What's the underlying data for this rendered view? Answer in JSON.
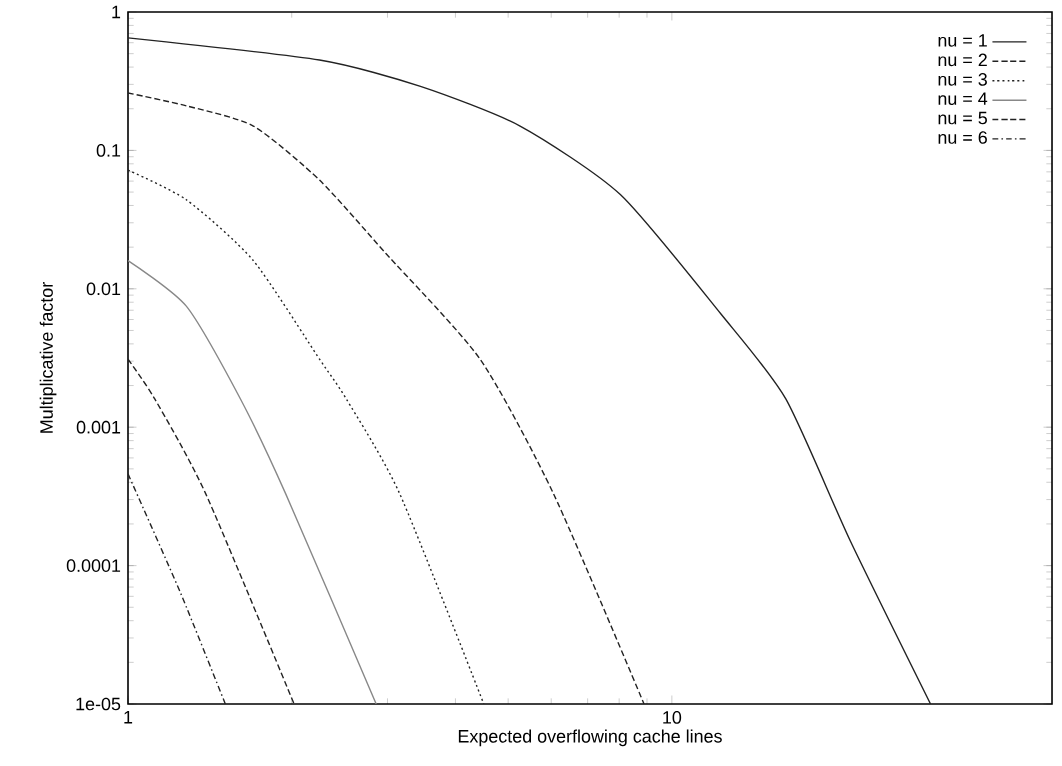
{
  "chart_data": {
    "type": "line",
    "xlabel": "Expected overflowing cache lines",
    "ylabel": "Multiplicative factor",
    "log": "xy",
    "xlim": [
      1,
      50
    ],
    "ylim": [
      1e-05,
      1
    ],
    "xticks": [
      1,
      10
    ],
    "yticks": [
      {
        "value": 1e-05,
        "label": "1e-05"
      },
      {
        "value": 0.0001,
        "label": "0.0001"
      },
      {
        "value": 0.001,
        "label": "0.001"
      },
      {
        "value": 0.01,
        "label": "0.01"
      },
      {
        "value": 0.1,
        "label": "0.1"
      },
      {
        "value": 1,
        "label": "1"
      }
    ],
    "grid": false,
    "legend": "top right",
    "marker": "none",
    "series": [
      {
        "name": "nu = 1",
        "color": "#222222",
        "line_style": "solid",
        "x": [
          1,
          2.25,
          3.45,
          5.26,
          8.04,
          12.3,
          16.2,
          21.3,
          29.9
        ],
        "values": [
          0.65,
          0.45,
          0.29,
          0.15,
          0.048,
          0.0066,
          0.0016,
          0.00015,
          1e-05
        ]
      },
      {
        "name": "nu = 2",
        "color": "#222222",
        "line_style": "dashed",
        "x": [
          1,
          1.28,
          1.7,
          2.25,
          2.98,
          4.44,
          6.06,
          8.89
        ],
        "values": [
          0.26,
          0.21,
          0.15,
          0.061,
          0.018,
          0.0031,
          0.00033,
          1e-05
        ]
      },
      {
        "name": "nu = 3",
        "color": "#222222",
        "line_style": "dotted",
        "x": [
          1,
          1.28,
          1.7,
          2.25,
          2.52,
          3.16,
          4.51
        ],
        "values": [
          0.072,
          0.044,
          0.016,
          0.0031,
          0.0016,
          0.00033,
          1e-05
        ]
      },
      {
        "name": "nu = 4",
        "color": "#888888",
        "line_style": "solid",
        "x": [
          1,
          1.28,
          1.61,
          1.95,
          2.86
        ],
        "values": [
          0.016,
          0.0075,
          0.0016,
          0.00033,
          1e-05
        ]
      },
      {
        "name": "nu = 5",
        "color": "#222222",
        "line_style": "dashed",
        "x": [
          1,
          1.12,
          1.39,
          2.02
        ],
        "values": [
          0.0031,
          0.0016,
          0.00033,
          1e-05
        ]
      },
      {
        "name": "nu = 6",
        "color": "#222222",
        "line_style": "dashdotted",
        "x": [
          1,
          1.25,
          1.51
        ],
        "values": [
          0.00046,
          6.3e-05,
          1e-05
        ]
      }
    ]
  }
}
